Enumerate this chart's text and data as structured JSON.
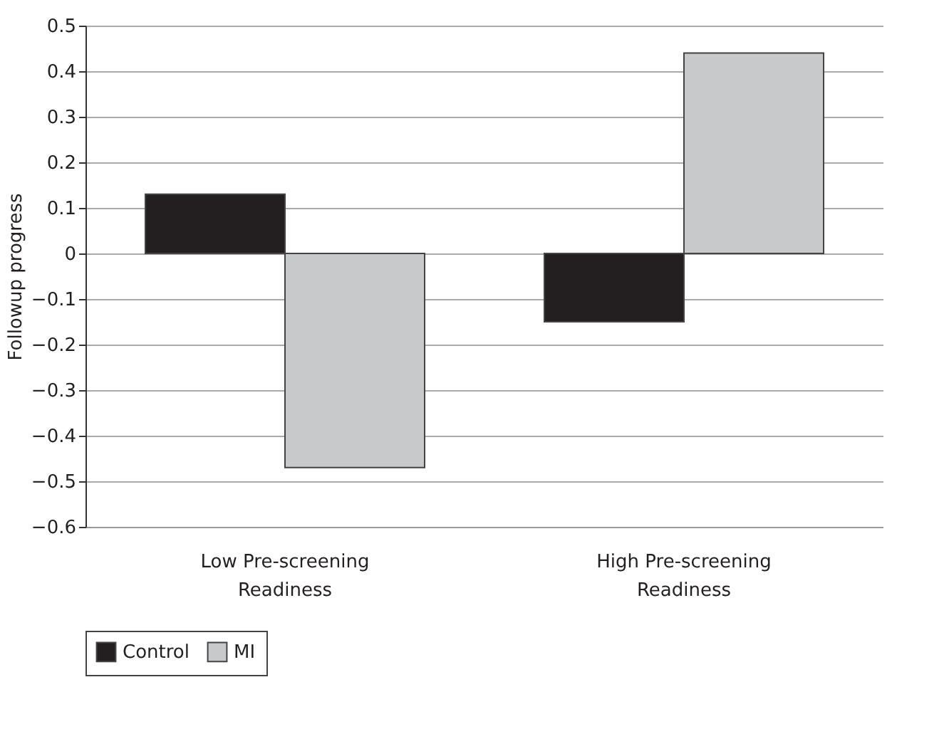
{
  "chart_data": {
    "type": "bar",
    "ylabel": "Followup progress",
    "categories": [
      "Low Pre-screening Readiness",
      "High Pre-screening Readiness"
    ],
    "series": [
      {
        "name": "Control",
        "color": "#231f20",
        "values": [
          0.13,
          -0.15
        ]
      },
      {
        "name": "MI",
        "color": "#c8c9cb",
        "values": [
          -0.47,
          0.44
        ]
      }
    ],
    "ylim": [
      -0.6,
      0.5
    ],
    "yticks": [
      -0.6,
      -0.5,
      -0.4,
      -0.3,
      -0.2,
      -0.1,
      0,
      0.1,
      0.2,
      0.3,
      0.4,
      0.5
    ],
    "grid": "y",
    "legend": "bottom"
  }
}
